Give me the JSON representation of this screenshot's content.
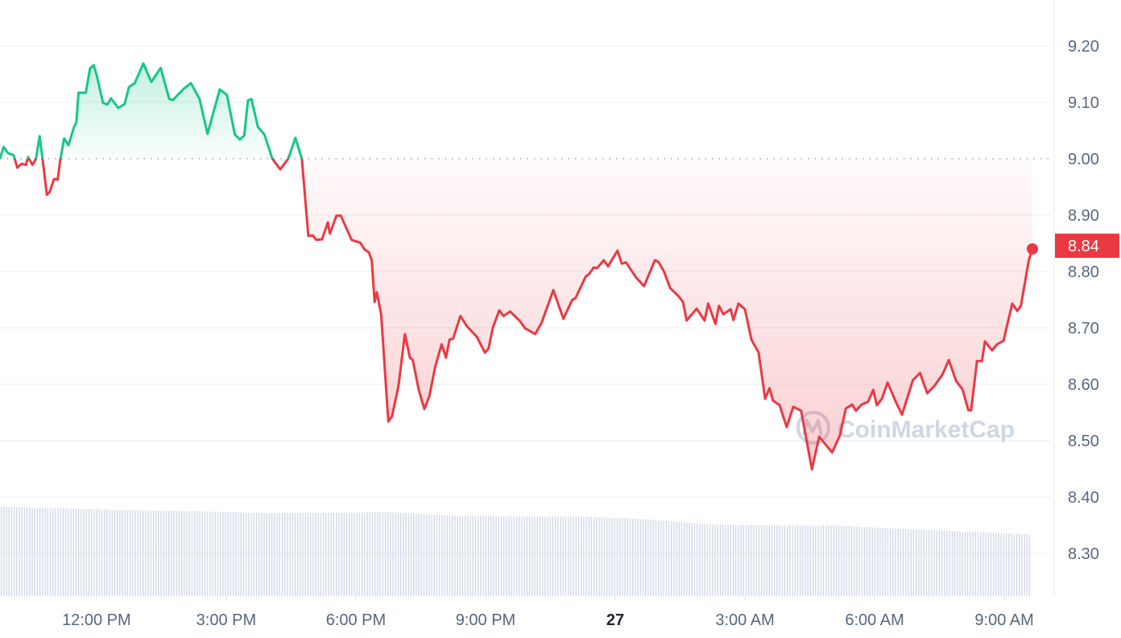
{
  "chart_data": {
    "type": "line",
    "title": "",
    "xlabel": "",
    "ylabel": "",
    "ylim": [
      8.22,
      9.28
    ],
    "xlim": [
      "26 09:46",
      "27 09:39"
    ],
    "grid": true,
    "reference_line": {
      "value": 9.0,
      "style": "dotted"
    },
    "y_ticks": [
      "9.20",
      "9.10",
      "9.00",
      "8.90",
      "8.80",
      "8.70",
      "8.60",
      "8.50",
      "8.40",
      "8.30"
    ],
    "x_ticks": [
      {
        "t": "26 12:00",
        "label": "12:00 PM",
        "bold": false
      },
      {
        "t": "26 15:00",
        "label": "3:00 PM",
        "bold": false
      },
      {
        "t": "26 18:00",
        "label": "6:00 PM",
        "bold": false
      },
      {
        "t": "26 21:00",
        "label": "9:00 PM",
        "bold": false
      },
      {
        "t": "27 00:00",
        "label": "27",
        "bold": true
      },
      {
        "t": "27 03:00",
        "label": "3:00 AM",
        "bold": false
      },
      {
        "t": "27 06:00",
        "label": "6:00 AM",
        "bold": false
      },
      {
        "t": "27 09:00",
        "label": "9:00 AM",
        "bold": false
      }
    ],
    "current_price": "8.84",
    "watermark": "CoinMarketCap",
    "colors": {
      "up": "#16c784",
      "down": "#ea3943",
      "volume": "#cfd6e4",
      "label": "#58667e"
    },
    "series": [
      {
        "points": [
          [
            "26 09:46",
            9.0
          ],
          [
            "26 09:51",
            9.021
          ],
          [
            "26 09:57",
            9.01
          ],
          [
            "26 10:05",
            9.006
          ],
          [
            "26 10:10",
            8.984
          ],
          [
            "26 10:16",
            8.991
          ],
          [
            "26 10:22",
            8.989
          ],
          [
            "26 10:25",
            9.003
          ],
          [
            "26 10:31",
            8.989
          ],
          [
            "26 10:36",
            9.0
          ],
          [
            "26 10:41",
            9.04
          ],
          [
            "26 10:45",
            9.0
          ],
          [
            "26 10:51",
            8.936
          ],
          [
            "26 10:55",
            8.941
          ],
          [
            "26 11:01",
            8.964
          ],
          [
            "26 11:06",
            8.963
          ],
          [
            "26 11:10",
            9.0
          ],
          [
            "26 11:15",
            9.036
          ],
          [
            "26 11:21",
            9.024
          ],
          [
            "26 11:29",
            9.057
          ],
          [
            "26 11:32",
            9.064
          ],
          [
            "26 11:35",
            9.117
          ],
          [
            "26 11:45",
            9.117
          ],
          [
            "26 11:51",
            9.16
          ],
          [
            "26 11:56",
            9.166
          ],
          [
            "26 12:00",
            9.149
          ],
          [
            "26 12:09",
            9.099
          ],
          [
            "26 12:15",
            9.096
          ],
          [
            "26 12:20",
            9.107
          ],
          [
            "26 12:30",
            9.09
          ],
          [
            "26 12:39",
            9.097
          ],
          [
            "26 12:45",
            9.127
          ],
          [
            "26 12:53",
            9.134
          ],
          [
            "26 13:05",
            9.169
          ],
          [
            "26 13:16",
            9.136
          ],
          [
            "26 13:29",
            9.161
          ],
          [
            "26 13:41",
            9.106
          ],
          [
            "26 13:46",
            9.104
          ],
          [
            "26 14:01",
            9.124
          ],
          [
            "26 14:11",
            9.134
          ],
          [
            "26 14:23",
            9.106
          ],
          [
            "26 14:34",
            9.044
          ],
          [
            "26 14:51",
            9.123
          ],
          [
            "26 15:01",
            9.113
          ],
          [
            "26 15:12",
            9.043
          ],
          [
            "26 15:19",
            9.034
          ],
          [
            "26 15:25",
            9.041
          ],
          [
            "26 15:30",
            9.103
          ],
          [
            "26 15:35",
            9.106
          ],
          [
            "26 15:44",
            9.056
          ],
          [
            "26 15:53",
            9.043
          ],
          [
            "26 16:04",
            9.0
          ],
          [
            "26 16:15",
            8.981
          ],
          [
            "26 16:26",
            9.0
          ],
          [
            "26 16:36",
            9.037
          ],
          [
            "26 16:45",
            9.0
          ],
          [
            "26 16:54",
            8.863
          ],
          [
            "26 17:00",
            8.864
          ],
          [
            "26 17:05",
            8.856
          ],
          [
            "26 17:13",
            8.857
          ],
          [
            "26 17:21",
            8.887
          ],
          [
            "26 17:24",
            8.867
          ],
          [
            "26 17:33",
            8.899
          ],
          [
            "26 17:39",
            8.899
          ],
          [
            "26 17:54",
            8.856
          ],
          [
            "26 18:06",
            8.851
          ],
          [
            "26 18:12",
            8.839
          ],
          [
            "26 18:18",
            8.834
          ],
          [
            "26 18:22",
            8.82
          ],
          [
            "26 18:26",
            8.746
          ],
          [
            "26 18:29",
            8.763
          ],
          [
            "26 18:35",
            8.724
          ],
          [
            "26 18:45",
            8.534
          ],
          [
            "26 18:50",
            8.543
          ],
          [
            "26 18:59",
            8.596
          ],
          [
            "26 19:08",
            8.689
          ],
          [
            "26 19:15",
            8.647
          ],
          [
            "26 19:19",
            8.643
          ],
          [
            "26 19:27",
            8.591
          ],
          [
            "26 19:35",
            8.556
          ],
          [
            "26 19:42",
            8.579
          ],
          [
            "26 19:50",
            8.631
          ],
          [
            "26 19:59",
            8.671
          ],
          [
            "26 20:05",
            8.647
          ],
          [
            "26 20:10",
            8.679
          ],
          [
            "26 20:15",
            8.681
          ],
          [
            "26 20:25",
            8.721
          ],
          [
            "26 20:34",
            8.703
          ],
          [
            "26 20:48",
            8.684
          ],
          [
            "26 20:59",
            8.656
          ],
          [
            "26 21:04",
            8.663
          ],
          [
            "26 21:10",
            8.7
          ],
          [
            "26 21:19",
            8.731
          ],
          [
            "26 21:25",
            8.721
          ],
          [
            "26 21:34",
            8.729
          ],
          [
            "26 21:47",
            8.713
          ],
          [
            "26 21:55",
            8.699
          ],
          [
            "26 22:09",
            8.689
          ],
          [
            "26 22:18",
            8.71
          ],
          [
            "26 22:34",
            8.767
          ],
          [
            "26 22:48",
            8.716
          ],
          [
            "26 23:00",
            8.749
          ],
          [
            "26 23:05",
            8.753
          ],
          [
            "26 23:19",
            8.791
          ],
          [
            "26 23:24",
            8.796
          ],
          [
            "26 23:30",
            8.807
          ],
          [
            "26 23:35",
            8.806
          ],
          [
            "26 23:44",
            8.82
          ],
          [
            "26 23:50",
            8.809
          ],
          [
            "27 00:03",
            8.837
          ],
          [
            "27 00:09",
            8.814
          ],
          [
            "27 00:15",
            8.816
          ],
          [
            "27 00:29",
            8.789
          ],
          [
            "27 00:40",
            8.774
          ],
          [
            "27 00:55",
            8.82
          ],
          [
            "27 01:00",
            8.817
          ],
          [
            "27 01:08",
            8.799
          ],
          [
            "27 01:16",
            8.771
          ],
          [
            "27 01:28",
            8.756
          ],
          [
            "27 01:34",
            8.746
          ],
          [
            "27 01:39",
            8.713
          ],
          [
            "27 01:53",
            8.734
          ],
          [
            "27 02:04",
            8.713
          ],
          [
            "27 02:09",
            8.743
          ],
          [
            "27 02:19",
            8.707
          ],
          [
            "27 02:24",
            8.739
          ],
          [
            "27 02:30",
            8.724
          ],
          [
            "27 02:40",
            8.733
          ],
          [
            "27 02:44",
            8.714
          ],
          [
            "27 02:51",
            8.743
          ],
          [
            "27 03:00",
            8.733
          ],
          [
            "27 03:09",
            8.679
          ],
          [
            "27 03:19",
            8.656
          ],
          [
            "27 03:28",
            8.574
          ],
          [
            "27 03:34",
            8.593
          ],
          [
            "27 03:39",
            8.571
          ],
          [
            "27 03:48",
            8.563
          ],
          [
            "27 03:58",
            8.524
          ],
          [
            "27 04:07",
            8.56
          ],
          [
            "27 04:18",
            8.553
          ],
          [
            "27 04:33",
            8.449
          ],
          [
            "27 04:43",
            8.507
          ],
          [
            "27 04:50",
            8.496
          ],
          [
            "27 05:01",
            8.479
          ],
          [
            "27 05:12",
            8.51
          ],
          [
            "27 05:20",
            8.557
          ],
          [
            "27 05:29",
            8.564
          ],
          [
            "27 05:34",
            8.553
          ],
          [
            "27 05:42",
            8.564
          ],
          [
            "27 05:51",
            8.569
          ],
          [
            "27 05:58",
            8.59
          ],
          [
            "27 06:03",
            8.563
          ],
          [
            "27 06:10",
            8.574
          ],
          [
            "27 06:18",
            8.603
          ],
          [
            "27 06:29",
            8.57
          ],
          [
            "27 06:38",
            8.546
          ],
          [
            "27 06:53",
            8.607
          ],
          [
            "27 07:03",
            8.62
          ],
          [
            "27 07:13",
            8.584
          ],
          [
            "27 07:23",
            8.597
          ],
          [
            "27 07:34",
            8.617
          ],
          [
            "27 07:43",
            8.643
          ],
          [
            "27 07:53",
            8.606
          ],
          [
            "27 08:02",
            8.591
          ],
          [
            "27 08:10",
            8.554
          ],
          [
            "27 08:14",
            8.554
          ],
          [
            "27 08:22",
            8.641
          ],
          [
            "27 08:29",
            8.641
          ],
          [
            "27 08:33",
            8.676
          ],
          [
            "27 08:43",
            8.66
          ],
          [
            "27 08:50",
            8.671
          ],
          [
            "27 08:59",
            8.677
          ],
          [
            "27 09:03",
            8.7
          ],
          [
            "27 09:11",
            8.743
          ],
          [
            "27 09:18",
            8.73
          ],
          [
            "27 09:23",
            8.739
          ],
          [
            "27 09:34",
            8.82
          ],
          [
            "27 09:39",
            8.84
          ]
        ]
      }
    ],
    "volume_relative": [
      100,
      98,
      96,
      95,
      93,
      93,
      94,
      90,
      89,
      89,
      86,
      80,
      79,
      79,
      75,
      72,
      69
    ]
  }
}
